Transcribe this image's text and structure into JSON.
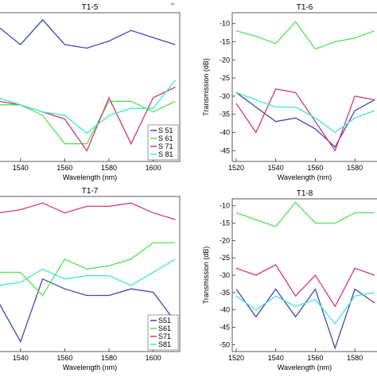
{
  "panels": [
    {
      "title": "T1-5",
      "xlabel": "Wavelength (nm)",
      "ylabel": "",
      "xticks": [
        1540,
        1560,
        1580,
        1600
      ],
      "yticks": [],
      "legend": {
        "entries": [
          "S 51",
          "S 61",
          "S 71",
          "S 81"
        ],
        "placement": "bottom-right"
      }
    },
    {
      "title": "T1-6",
      "xlabel": "Wavelength (nm)",
      "ylabel": "Transmission (dB)",
      "xticks": [
        1520,
        1540,
        1560,
        1580
      ],
      "yticks": [
        -10,
        -15,
        -20,
        -25,
        -30,
        -35,
        -40,
        -45
      ],
      "legend": null
    },
    {
      "title": "T1-7",
      "xlabel": "Wavelength (nm)",
      "ylabel": "",
      "xticks": [
        1540,
        1560,
        1580,
        1600
      ],
      "yticks": [],
      "legend": {
        "entries": [
          "S51",
          "S61",
          "S71",
          "S81"
        ],
        "placement": "bottom-right"
      }
    },
    {
      "title": "T1-8",
      "xlabel": "Wavelength (nm)",
      "ylabel": "Transmission (dB)",
      "xticks": [
        1520,
        1540,
        1560,
        1580
      ],
      "yticks": [
        -10,
        -15,
        -20,
        -25,
        -30,
        -35,
        -40,
        -45,
        -50
      ],
      "legend": null
    }
  ],
  "chart_data": [
    {
      "type": "line",
      "title": "T1-5",
      "xlabel": "Wavelength (nm)",
      "ylabel": "",
      "xlim": [
        1530,
        1612
      ],
      "ylim": [
        -48,
        -6
      ],
      "x": [
        1530,
        1540,
        1550,
        1560,
        1570,
        1580,
        1590,
        1600,
        1610
      ],
      "series": [
        {
          "name": "S 51",
          "color": "#3f48b8",
          "values": [
            -10,
            -15,
            -8,
            -15,
            -16,
            -14,
            -11,
            -13,
            -15
          ]
        },
        {
          "name": "S 61",
          "color": "#54e054",
          "values": [
            -32,
            -32,
            -35,
            -43,
            -43,
            -31,
            -31,
            -34,
            -31
          ]
        },
        {
          "name": "S 71",
          "color": "#d63a6a",
          "values": [
            -31,
            -32,
            -34,
            -36,
            -45,
            -30,
            -43,
            -30,
            -27
          ]
        },
        {
          "name": "S 81",
          "color": "#3fe8d2",
          "values": [
            -30,
            -32,
            -34,
            -35,
            -40,
            -35,
            -33,
            -33,
            -25
          ]
        }
      ]
    },
    {
      "type": "line",
      "title": "T1-6",
      "xlabel": "Wavelength (nm)",
      "ylabel": "Transmission (dB)",
      "xlim": [
        1518,
        1592
      ],
      "ylim": [
        -48,
        -7
      ],
      "x": [
        1520,
        1530,
        1540,
        1550,
        1560,
        1570,
        1580,
        1590
      ],
      "series": [
        {
          "name": "S 51",
          "color": "#3f48b8",
          "values": [
            -29,
            -33,
            -37,
            -36,
            -39,
            -44,
            -34,
            -31
          ]
        },
        {
          "name": "S 61",
          "color": "#54e054",
          "values": [
            -12,
            -13.5,
            -15.5,
            -9.5,
            -17,
            -15,
            -14,
            -12
          ]
        },
        {
          "name": "S 71",
          "color": "#d63a6a",
          "values": [
            -32,
            -40,
            -28,
            -29,
            -37,
            -45,
            -30,
            -31
          ]
        },
        {
          "name": "S 81",
          "color": "#3fe8d2",
          "values": [
            -29,
            -31,
            -33,
            -33,
            -36,
            -40,
            -36,
            -34
          ]
        }
      ]
    },
    {
      "type": "line",
      "title": "T1-7",
      "xlabel": "Wavelength (nm)",
      "ylabel": "",
      "xlim": [
        1530,
        1612
      ],
      "ylim": [
        -55,
        -8
      ],
      "x": [
        1530,
        1540,
        1550,
        1560,
        1570,
        1580,
        1590,
        1600,
        1610
      ],
      "series": [
        {
          "name": "S51",
          "color": "#3f48b8",
          "values": [
            -40,
            -52,
            -33,
            -36,
            -38,
            -38,
            -36,
            -37,
            -46
          ]
        },
        {
          "name": "S61",
          "color": "#54e054",
          "values": [
            -31,
            -31,
            -38,
            -27,
            -30,
            -29,
            -27,
            -22,
            -22
          ]
        },
        {
          "name": "S71",
          "color": "#d63a6a",
          "values": [
            -13,
            -12,
            -10,
            -13,
            -11,
            -11,
            -10,
            -13,
            -15
          ]
        },
        {
          "name": "S81",
          "color": "#3fe8d2",
          "values": [
            -35,
            -34,
            -30,
            -33,
            -32,
            -32,
            -35,
            -31,
            -27
          ]
        }
      ]
    },
    {
      "type": "line",
      "title": "T1-8",
      "xlabel": "Wavelength (nm)",
      "ylabel": "Transmission (dB)",
      "xlim": [
        1518,
        1592
      ],
      "ylim": [
        -52,
        -8
      ],
      "x": [
        1520,
        1530,
        1540,
        1550,
        1560,
        1570,
        1580,
        1590
      ],
      "series": [
        {
          "name": "S51",
          "color": "#3f48b8",
          "values": [
            -34,
            -42,
            -34,
            -42,
            -34,
            -51,
            -34,
            -38
          ]
        },
        {
          "name": "S61",
          "color": "#54e054",
          "values": [
            -12,
            -14,
            -16,
            -9,
            -15,
            -15,
            -12,
            -12
          ]
        },
        {
          "name": "S71",
          "color": "#d63a6a",
          "values": [
            -28,
            -30,
            -27,
            -36,
            -30,
            -39,
            -28,
            -30
          ]
        },
        {
          "name": "S81",
          "color": "#3fe8d2",
          "values": [
            -36,
            -40,
            -36,
            -39,
            -37,
            -44,
            -36,
            -35
          ]
        }
      ]
    }
  ]
}
